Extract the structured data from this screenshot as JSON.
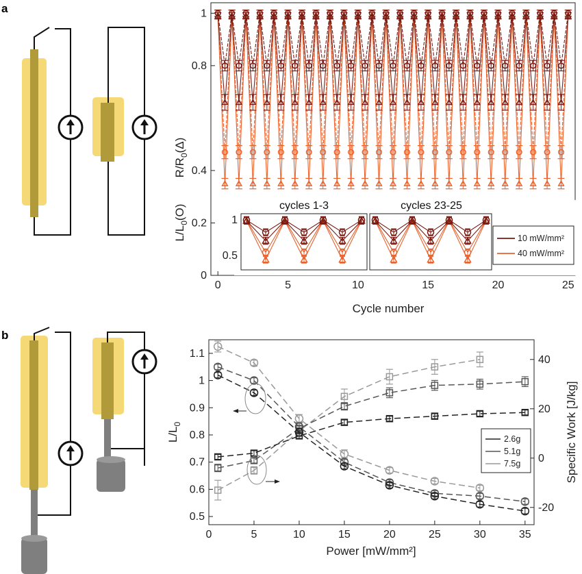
{
  "panel_labels": {
    "a": "a",
    "b": "b"
  },
  "colors": {
    "series_10": "#7a1a12",
    "series_40": "#e8632e",
    "rod_yellow": "#f5d977",
    "rod_core": "#b09a3a",
    "mass_gray": "#7f7f7f",
    "gray_2_6": "#222222",
    "gray_5_1": "#555555",
    "gray_7_5": "#999999"
  },
  "chart_data": [
    {
      "id": "panel-a",
      "type": "line",
      "xlabel": "Cycle number",
      "ylabel_top": "R/R",
      "ylabel_top_sub": "0",
      "ylabel_top_sym": "(Δ)",
      "ylabel_bottom": "L/L",
      "ylabel_bottom_sub": "0",
      "ylabel_bottom_sym": "(O)",
      "xlim": [
        -0.5,
        25.5
      ],
      "ylim": [
        0,
        1.04
      ],
      "xticks": [
        0,
        5,
        10,
        15,
        20,
        25
      ],
      "yticks": [
        0,
        0.2,
        0.4,
        0.8,
        1
      ],
      "grid": false,
      "period": 1,
      "series": [
        {
          "name": "10 mW/mm²",
          "color": "#7a1a12",
          "high": {
            "L": 1.0,
            "R": 0.99
          },
          "low": {
            "L": 0.8,
            "R": 0.66
          },
          "error_low": {
            "L": 0.02,
            "R": 0.03
          }
        },
        {
          "name": "40 mW/mm²",
          "color": "#e8632e",
          "high": {
            "L": 1.0,
            "R": 0.99
          },
          "low": {
            "L": 0.47,
            "R": 0.35
          },
          "error_low": {
            "L": 0.025,
            "R": 0.02
          }
        }
      ],
      "insets": [
        {
          "title": "cycles 1-3",
          "yticks": [
            0.5,
            1
          ]
        },
        {
          "title": "cycles 23-25",
          "yticks": []
        }
      ]
    },
    {
      "id": "panel-b",
      "type": "line",
      "xlabel": "Power [mW/mm²]",
      "ylabel_left": "L/L",
      "ylabel_left_sub": "0",
      "ylabel_right": "Specific Work [J/kg]",
      "xlim": [
        0,
        36
      ],
      "ylim_left": [
        0.47,
        1.15
      ],
      "ylim_right": [
        -27,
        48
      ],
      "xticks": [
        0,
        5,
        10,
        15,
        20,
        25,
        30,
        35
      ],
      "yticks_left": [
        0.5,
        0.6,
        0.7,
        0.8,
        0.9,
        1,
        1.1
      ],
      "yticks_right": [
        -20,
        0,
        20,
        40
      ],
      "legend": "right",
      "series": [
        {
          "name": "2.6g",
          "color": "#222222",
          "L": {
            "x": [
              1,
              5,
              10,
              15,
              20,
              25,
              30,
              35
            ],
            "y": [
              1.02,
              0.955,
              0.81,
              0.685,
              0.615,
              0.575,
              0.545,
              0.52
            ],
            "err": [
              0.01,
              0.01,
              0.015,
              0.01,
              0.01,
              0.01,
              0.01,
              0.01
            ]
          },
          "W": {
            "x": [
              1,
              5,
              10,
              15,
              20,
              25,
              30,
              35
            ],
            "y": [
              0.5,
              2,
              9,
              14.5,
              16,
              17,
              18,
              18.5
            ],
            "err": [
              1,
              1,
              1,
              1,
              1,
              1,
              1,
              1
            ]
          }
        },
        {
          "name": "5.1g",
          "color": "#555555",
          "L": {
            "x": [
              1,
              5,
              10,
              15,
              20,
              25,
              30,
              35
            ],
            "y": [
              1.05,
              1.0,
              0.83,
              0.7,
              0.625,
              0.585,
              0.575,
              0.555
            ],
            "err": [
              0.01,
              0.01,
              0.015,
              0.01,
              0.01,
              0.01,
              0.01,
              0.01
            ]
          },
          "W": {
            "x": [
              1,
              5,
              10,
              15,
              20,
              25,
              30,
              35
            ],
            "y": [
              -4,
              -1,
              12,
              21,
              26.5,
              29.5,
              30,
              31
            ],
            "err": [
              1.5,
              1,
              1,
              1.5,
              2,
              2,
              2,
              2
            ]
          }
        },
        {
          "name": "7.5g",
          "color": "#999999",
          "L": {
            "x": [
              1,
              5,
              10,
              15,
              20,
              25,
              30
            ],
            "y": [
              1.125,
              1.065,
              0.86,
              0.73,
              0.67,
              0.63,
              0.605
            ],
            "err": [
              0.02,
              0.01,
              0.015,
              0.015,
              0.01,
              0.01,
              0.01
            ]
          },
          "W": {
            "x": [
              1,
              5,
              10,
              15,
              20,
              25,
              30
            ],
            "y": [
              -13,
              -5,
              11,
              25,
              33,
              37,
              40
            ],
            "err": [
              4,
              1.5,
              2,
              3,
              3,
              3,
              3
            ]
          }
        }
      ]
    }
  ]
}
